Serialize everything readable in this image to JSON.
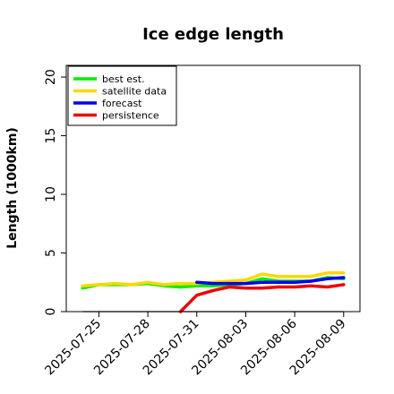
{
  "chart_data": {
    "type": "line",
    "title": "Ice edge length",
    "xlabel": "",
    "ylabel": "Length (1000km)",
    "ylim": [
      0,
      21
    ],
    "xlim": [
      "2025-07-23",
      "2025-08-10"
    ],
    "x_ticks": [
      "2025-07-25",
      "2025-07-28",
      "2025-07-31",
      "2025-08-03",
      "2025-08-06",
      "2025-08-09"
    ],
    "highlighted_tick": "2025-07-31",
    "highlight_color": "#2e8b2e",
    "y_ticks": [
      "0",
      "5",
      "10",
      "15",
      "20"
    ],
    "legend_position": "top-left",
    "grid": false,
    "reference_line": {
      "y": 0,
      "from": "2025-07-24",
      "to": "2025-08-09",
      "color": "#808080"
    },
    "series": [
      {
        "name": "best est.",
        "color": "#00ee00",
        "points": [
          [
            "2025-07-24",
            2.0
          ],
          [
            "2025-07-25",
            2.3
          ],
          [
            "2025-07-26",
            2.3
          ],
          [
            "2025-07-27",
            2.3
          ],
          [
            "2025-07-28",
            2.4
          ],
          [
            "2025-07-29",
            2.2
          ],
          [
            "2025-07-30",
            2.1
          ],
          [
            "2025-07-31",
            2.2
          ],
          [
            "2025-08-01",
            2.2
          ],
          [
            "2025-08-02",
            2.3
          ],
          [
            "2025-08-03",
            2.4
          ],
          [
            "2025-08-04",
            2.8
          ],
          [
            "2025-08-05",
            2.6
          ],
          [
            "2025-08-06",
            2.6
          ],
          [
            "2025-08-07",
            2.6
          ],
          [
            "2025-08-08",
            2.9
          ],
          [
            "2025-08-09",
            2.8
          ]
        ]
      },
      {
        "name": "satellite data",
        "color": "#ffd700",
        "points": [
          [
            "2025-07-24",
            2.2
          ],
          [
            "2025-07-25",
            2.3
          ],
          [
            "2025-07-26",
            2.4
          ],
          [
            "2025-07-27",
            2.3
          ],
          [
            "2025-07-28",
            2.5
          ],
          [
            "2025-07-29",
            2.3
          ],
          [
            "2025-07-30",
            2.4
          ],
          [
            "2025-07-31",
            2.4
          ],
          [
            "2025-08-01",
            2.5
          ],
          [
            "2025-08-02",
            2.6
          ],
          [
            "2025-08-03",
            2.7
          ],
          [
            "2025-08-04",
            3.2
          ],
          [
            "2025-08-05",
            3.0
          ],
          [
            "2025-08-06",
            3.0
          ],
          [
            "2025-08-07",
            3.0
          ],
          [
            "2025-08-08",
            3.3
          ],
          [
            "2025-08-09",
            3.3
          ]
        ]
      },
      {
        "name": "forecast",
        "color": "#0000ee",
        "points": [
          [
            "2025-07-31",
            2.5
          ],
          [
            "2025-08-01",
            2.4
          ],
          [
            "2025-08-02",
            2.4
          ],
          [
            "2025-08-03",
            2.4
          ],
          [
            "2025-08-04",
            2.5
          ],
          [
            "2025-08-05",
            2.5
          ],
          [
            "2025-08-06",
            2.5
          ],
          [
            "2025-08-07",
            2.6
          ],
          [
            "2025-08-08",
            2.8
          ],
          [
            "2025-08-09",
            2.9
          ]
        ]
      },
      {
        "name": "persistence",
        "color": "#ee0000",
        "points": [
          [
            "2025-07-30",
            0.0
          ],
          [
            "2025-07-31",
            1.4
          ],
          [
            "2025-08-01",
            1.8
          ],
          [
            "2025-08-02",
            2.1
          ],
          [
            "2025-08-03",
            2.0
          ],
          [
            "2025-08-04",
            2.0
          ],
          [
            "2025-08-05",
            2.1
          ],
          [
            "2025-08-06",
            2.1
          ],
          [
            "2025-08-07",
            2.2
          ],
          [
            "2025-08-08",
            2.1
          ],
          [
            "2025-08-09",
            2.3
          ]
        ]
      }
    ]
  }
}
